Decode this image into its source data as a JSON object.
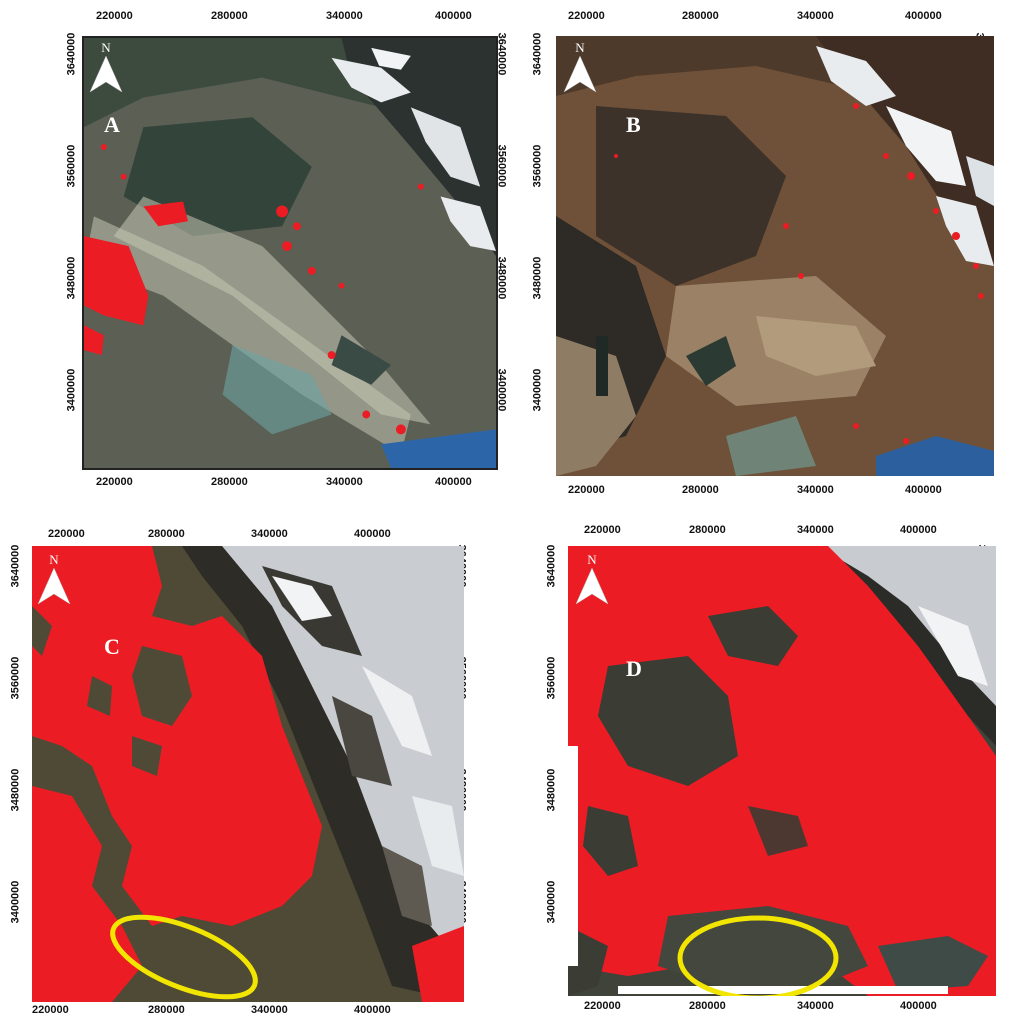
{
  "figure": {
    "x_ticks": [
      "220000",
      "280000",
      "340000",
      "400000"
    ],
    "y_ticks": [
      "3640000",
      "3560000",
      "3480000",
      "3400000"
    ],
    "north_label": "N",
    "colors": {
      "fire_red": "#ec1c24",
      "highlight_yellow": "#f2e600",
      "cloud_white": "#e9ecef",
      "frame": "#222222"
    },
    "icons": [
      "north-arrow-icon"
    ]
  },
  "panels": [
    {
      "id": "A",
      "letter": "A",
      "theme": "smoke-gray"
    },
    {
      "id": "B",
      "letter": "B",
      "theme": "brown-desert"
    },
    {
      "id": "C",
      "letter": "C",
      "theme": "red-coverage",
      "highlight_ellipse": true
    },
    {
      "id": "D",
      "letter": "D",
      "theme": "red-coverage-dense",
      "highlight_ellipse": true
    }
  ]
}
